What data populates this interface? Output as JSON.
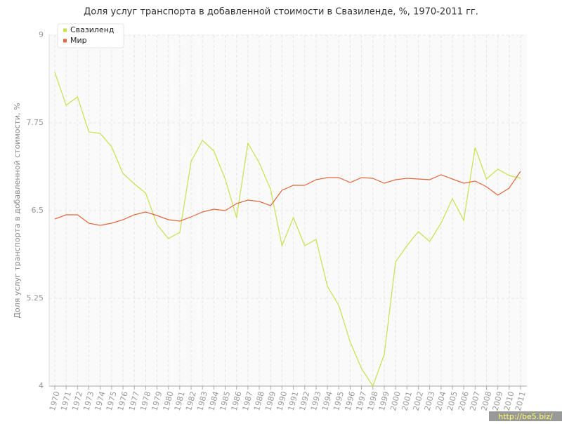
{
  "chart_data": {
    "type": "line",
    "title": "Доля услуг транспорта в добавленной стоимости в Свазиленде, %, 1970-2011 гг.",
    "y_label": "Доля услуг транспорта в добавленной стоимости, %",
    "watermark": "http://be5.biz/",
    "categories": [
      "1970",
      "1971",
      "1972",
      "1973",
      "1974",
      "1975",
      "1976",
      "1977",
      "1978",
      "1979",
      "1980",
      "1981",
      "1982",
      "1983",
      "1984",
      "1985",
      "1986",
      "1987",
      "1988",
      "1989",
      "1990",
      "1991",
      "1992",
      "1993",
      "1994",
      "1995",
      "1996",
      "1997",
      "1998",
      "1999",
      "2000",
      "2001",
      "2002",
      "2003",
      "2004",
      "2005",
      "2006",
      "2007",
      "2008",
      "2009",
      "2010",
      "2011"
    ],
    "series": [
      {
        "name": "Свазиленд",
        "color": "#c8e04e",
        "values": [
          8.47,
          8.0,
          8.12,
          7.62,
          7.6,
          7.41,
          7.03,
          6.88,
          6.75,
          6.3,
          6.1,
          6.19,
          7.2,
          7.5,
          7.35,
          6.95,
          6.4,
          7.46,
          7.18,
          6.8,
          6.0,
          6.4,
          6.0,
          6.09,
          5.42,
          5.15,
          4.63,
          4.25,
          4.0,
          4.45,
          5.77,
          6.0,
          6.2,
          6.06,
          6.32,
          6.67,
          6.36,
          7.4,
          6.95,
          7.09,
          7.0,
          6.96
        ]
      },
      {
        "name": "Мир",
        "color": "#e0673e",
        "values": [
          6.38,
          6.44,
          6.44,
          6.32,
          6.29,
          6.32,
          6.37,
          6.44,
          6.48,
          6.43,
          6.37,
          6.35,
          6.41,
          6.48,
          6.52,
          6.5,
          6.6,
          6.65,
          6.63,
          6.57,
          6.79,
          6.86,
          6.86,
          6.94,
          6.97,
          6.97,
          6.9,
          6.97,
          6.96,
          6.89,
          6.94,
          6.96,
          6.95,
          6.94,
          7.01,
          6.95,
          6.89,
          6.92,
          6.84,
          6.72,
          6.82,
          7.06
        ]
      }
    ],
    "ylim": [
      4,
      9
    ],
    "yticks": [
      4,
      5.25,
      6.5,
      7.75,
      9
    ],
    "grid": true,
    "legend": "top-left"
  }
}
